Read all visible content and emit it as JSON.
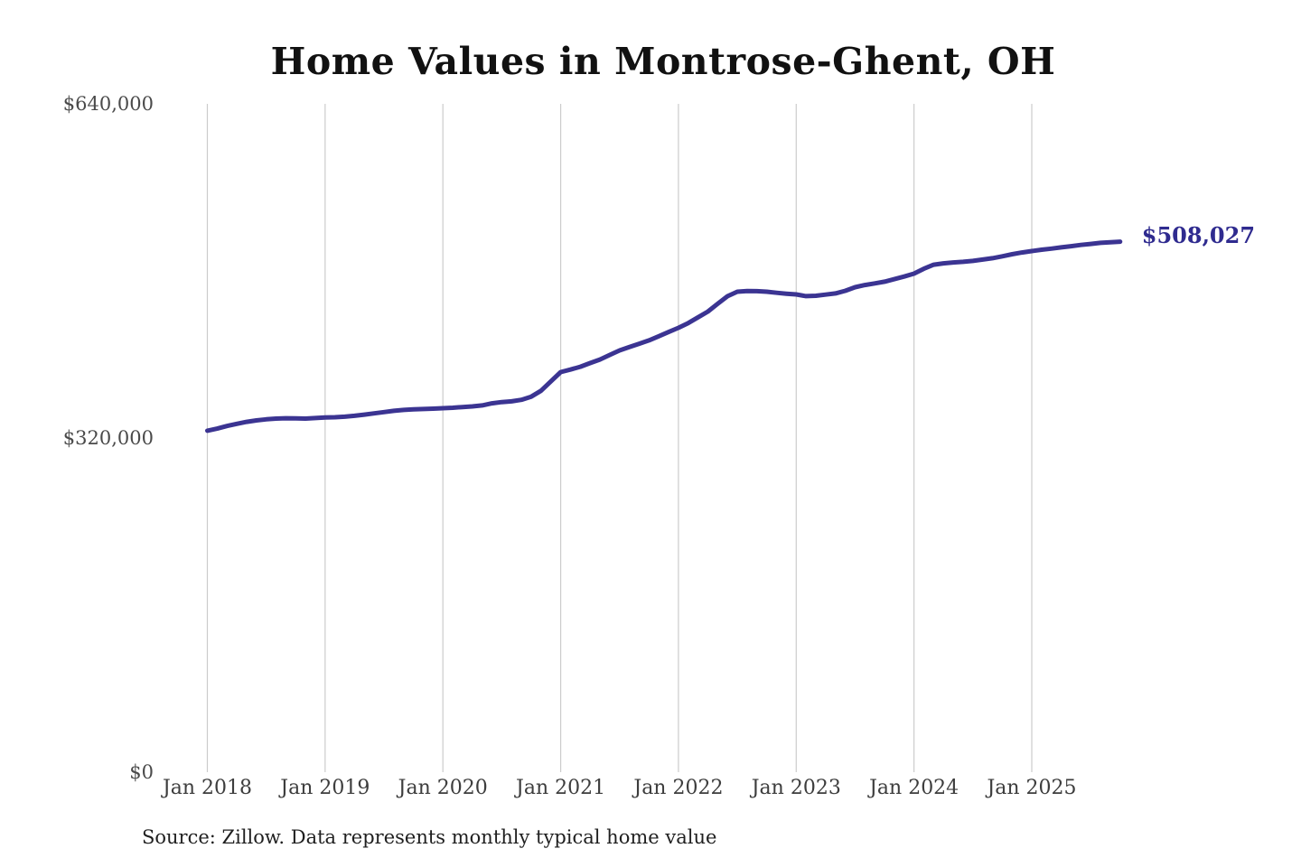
{
  "chart": {
    "title": "Home Values in Montrose-Ghent, OH",
    "end_value_label": "$508,027",
    "source_note": "Source: Zillow. Data represents monthly typical home value",
    "colors": {
      "line": "#3b3492",
      "end_label": "#2f2b8f",
      "gridline": "#cccccc",
      "title": "#111111",
      "axis_text": "#454545"
    }
  },
  "chart_data": {
    "type": "line",
    "title": "Home Values in Montrose-Ghent, OH",
    "xlabel": "",
    "ylabel": "",
    "ylim": [
      0,
      640000
    ],
    "grid": "vertical-year-gridlines-only",
    "legend": "none",
    "y_ticks": [
      {
        "value": 0,
        "label": "$0"
      },
      {
        "value": 320000,
        "label": "$320,000"
      },
      {
        "value": 640000,
        "label": "$640,000"
      }
    ],
    "x_ticks": [
      "Jan 2018",
      "Jan 2019",
      "Jan 2020",
      "Jan 2021",
      "Jan 2022",
      "Jan 2023",
      "Jan 2024",
      "Jan 2025"
    ],
    "x_range": {
      "start": "Jan 2018",
      "end": "Oct 2025",
      "interval": "monthly"
    },
    "last_point": {
      "label": "$508,027",
      "value": 508027
    },
    "series": [
      {
        "name": "Typical home value",
        "values": [
          327000,
          329000,
          331500,
          333600,
          335500,
          336900,
          337900,
          338600,
          338900,
          338800,
          338600,
          339100,
          339600,
          339900,
          340400,
          341300,
          342400,
          343600,
          344800,
          346000,
          346900,
          347400,
          347800,
          348100,
          348500,
          349000,
          349700,
          350300,
          351200,
          353200,
          354400,
          355100,
          356600,
          359600,
          365200,
          374200,
          383100,
          385600,
          388200,
          391800,
          395200,
          399600,
          403900,
          407100,
          410300,
          413500,
          417500,
          421500,
          425500,
          430100,
          435600,
          441100,
          448600,
          455800,
          460100,
          460800,
          460600,
          460100,
          459100,
          458200,
          457500,
          455900,
          456200,
          457300,
          458500,
          461000,
          464400,
          466500,
          468100,
          469700,
          472100,
          474600,
          477400,
          482100,
          486000,
          487300,
          488100,
          488700,
          489600,
          490900,
          492200,
          494000,
          496000,
          497600,
          499000,
          500300,
          501400,
          502600,
          503700,
          504900,
          505900,
          506900,
          507500,
          508027
        ]
      }
    ]
  }
}
